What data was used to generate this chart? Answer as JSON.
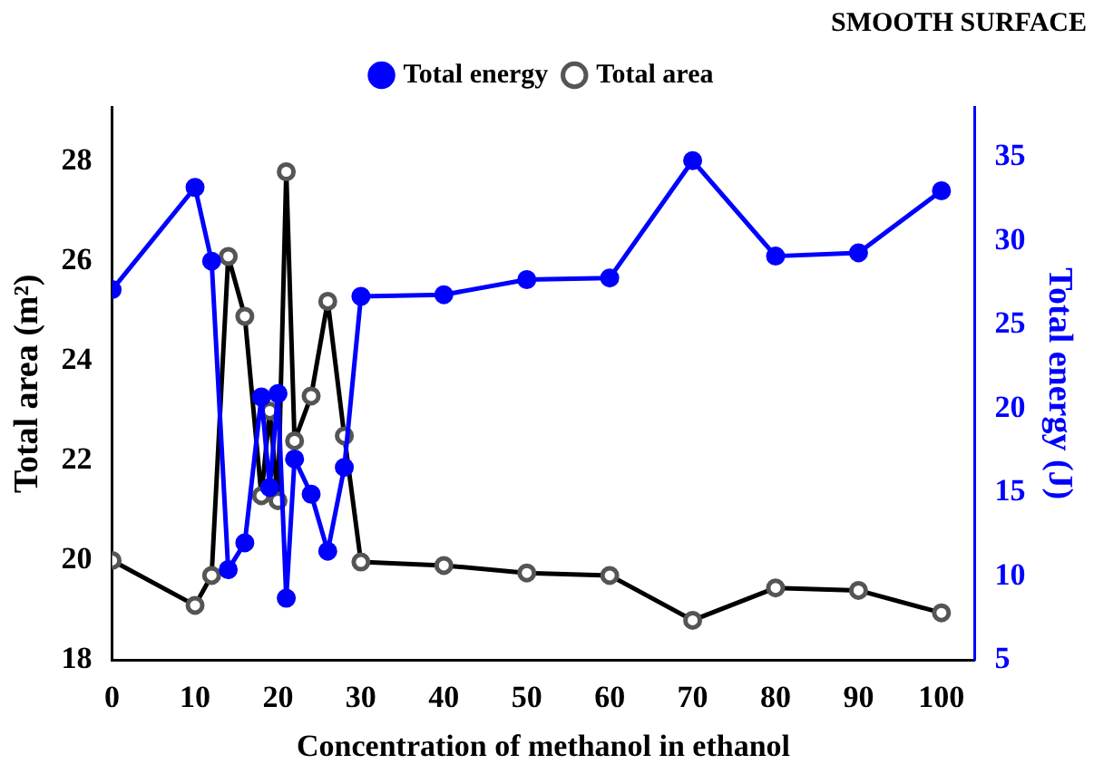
{
  "chart_data": {
    "type": "line",
    "title": "SMOOTH SURFACE",
    "xlabel": "Concentration of methanol in ethanol",
    "ylabel": "Total area (m²)",
    "y2label": "Total energy (J)",
    "x": [
      0,
      10,
      12,
      14,
      16,
      18,
      19,
      20,
      21,
      22,
      24,
      26,
      28,
      30,
      40,
      50,
      60,
      70,
      80,
      90,
      100
    ],
    "series": [
      {
        "name": "Total area",
        "color": "#000000",
        "values": [
          20.0,
          19.1,
          19.7,
          26.1,
          24.9,
          21.3,
          23.0,
          21.2,
          27.8,
          22.4,
          23.3,
          25.2,
          22.5,
          19.97,
          19.9,
          19.75,
          19.7,
          18.8,
          19.45,
          19.4,
          18.95
        ]
      },
      {
        "name": "Total energy",
        "color": "#0000ff",
        "axis": "y2",
        "values": [
          27.1,
          33.2,
          28.8,
          10.4,
          12.0,
          20.7,
          15.3,
          20.9,
          8.7,
          17.0,
          14.9,
          11.5,
          16.5,
          26.7,
          26.8,
          27.7,
          27.8,
          34.8,
          29.1,
          29.3,
          33.0
        ]
      }
    ],
    "xlim": [
      0,
      104
    ],
    "xticks": [
      0,
      10,
      20,
      30,
      40,
      50,
      60,
      70,
      80,
      90,
      100
    ],
    "ylim": [
      18,
      29.1
    ],
    "yticks": [
      18,
      20,
      22,
      24,
      26,
      28
    ],
    "y2lim": [
      5,
      38
    ],
    "y2ticks": [
      5,
      10,
      15,
      20,
      25,
      30,
      35
    ],
    "grid": false,
    "legend": "top",
    "marker": "circle",
    "line_style": "solid"
  }
}
